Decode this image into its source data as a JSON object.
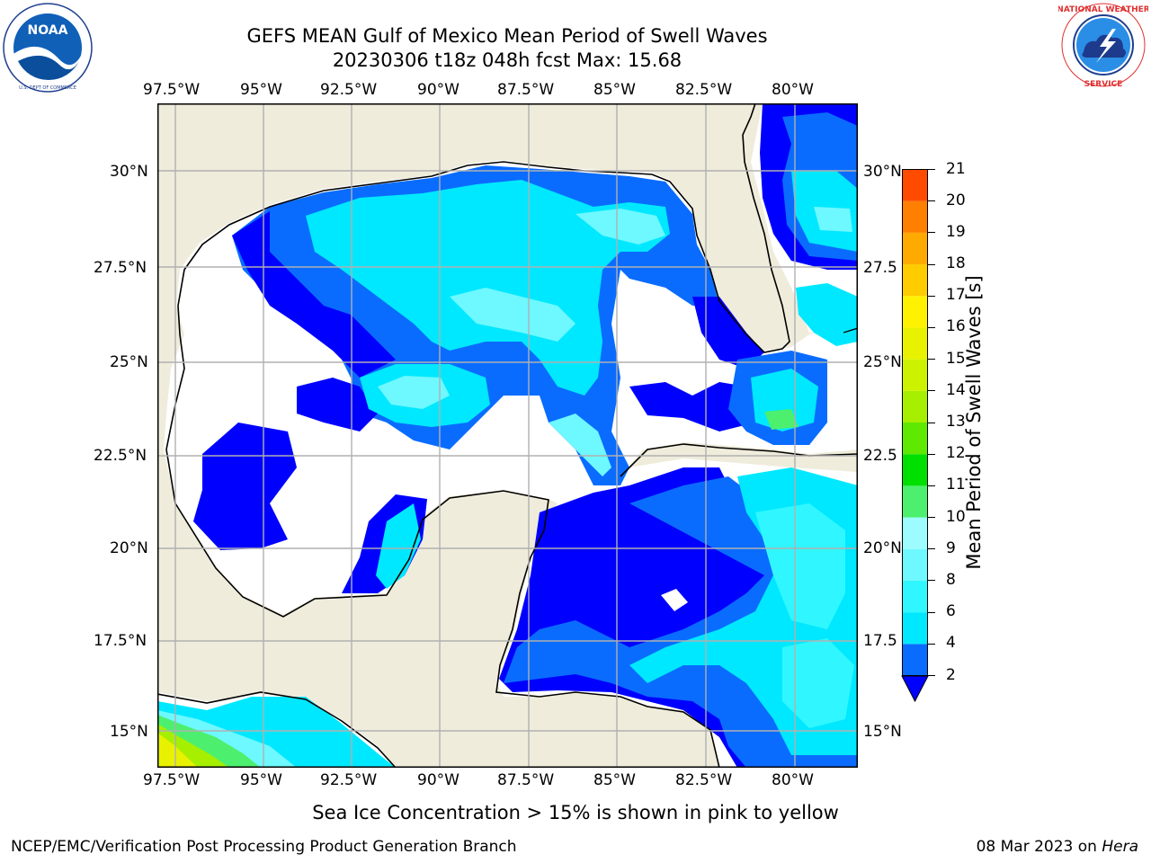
{
  "header": {
    "title_line1": "GEFS MEAN Gulf of Mexico Mean Period of Swell Waves",
    "title_line2": "20230306 t18z 048h fcst   Max: 15.68"
  },
  "logos": {
    "left": {
      "text": "NOAA",
      "ring_text": "NATIONAL OCEANIC AND ATMOSPHERIC ADMINISTRATION · U.S. DEPARTMENT OF COMMERCE"
    },
    "right": {
      "ring_text": "NATIONAL WEATHER SERVICE"
    }
  },
  "map": {
    "lon_labels": [
      "97.5°W",
      "95°W",
      "92.5°W",
      "90°W",
      "87.5°W",
      "85°W",
      "82.5°W",
      "80°W"
    ],
    "lat_labels_left": [
      "30°N",
      "27.5°N",
      "25°N",
      "22.5°N",
      "20°N",
      "17.5°N",
      "15°N"
    ],
    "lat_labels_right": [
      "30°N",
      "27.5",
      "25°N",
      "22.5",
      "20°N",
      "17.5",
      "15°N"
    ],
    "colors": {
      "land": "#efecdc",
      "grid": "#b0b0b0",
      "coast": "#000000"
    }
  },
  "colorbar": {
    "label": "Mean Period of Swell Waves [s]",
    "ticks": [
      "2",
      "4",
      "6",
      "8",
      "9",
      "10",
      "11",
      "12",
      "13",
      "14",
      "15",
      "16",
      "17",
      "18",
      "19",
      "20",
      "21"
    ],
    "colors": [
      "#0a6cff",
      "#00e8ff",
      "#30f7ff",
      "#6ef8ff",
      "#9cfcff",
      "#4cf06e",
      "#00e000",
      "#5fe800",
      "#a6ef00",
      "#ccf200",
      "#e8f200",
      "#fff200",
      "#ffcc00",
      "#ffaa00",
      "#ff7f00",
      "#ff4b00",
      "#ff1a00"
    ],
    "extend_color": "#0000ff"
  },
  "footer": {
    "note": "Sea Ice Concentration > 15% is shown in pink to yellow",
    "credit": "NCEP/EMC/Verification Post Processing Product Generation Branch",
    "date": "08 Mar 2023 on",
    "host": "Hera"
  }
}
